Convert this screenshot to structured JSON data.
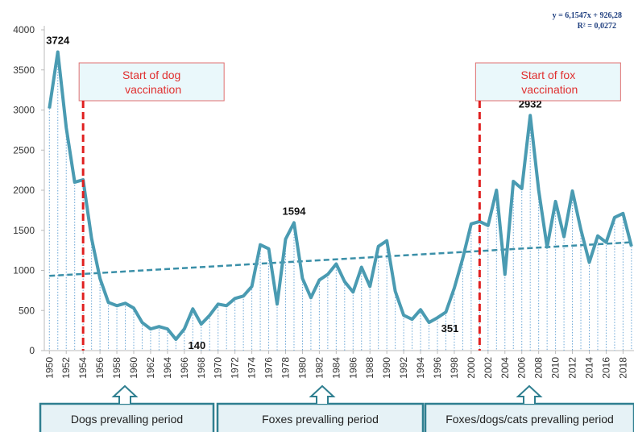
{
  "chart_data": {
    "type": "line",
    "x": [
      1950,
      1951,
      1952,
      1953,
      1954,
      1955,
      1956,
      1957,
      1958,
      1959,
      1960,
      1961,
      1962,
      1963,
      1964,
      1965,
      1966,
      1967,
      1968,
      1969,
      1970,
      1971,
      1972,
      1973,
      1974,
      1975,
      1976,
      1977,
      1978,
      1979,
      1980,
      1981,
      1982,
      1983,
      1984,
      1985,
      1986,
      1987,
      1988,
      1989,
      1990,
      1991,
      1992,
      1993,
      1994,
      1995,
      1996,
      1997,
      1998,
      1999,
      2000,
      2001,
      2002,
      2003,
      2004,
      2005,
      2006,
      2007,
      2008,
      2009,
      2010,
      2011,
      2012,
      2013,
      2014,
      2015,
      2016,
      2017,
      2018,
      2019
    ],
    "series": [
      {
        "name": null,
        "color": "#4a9bb2",
        "values": [
          3020,
          3724,
          2780,
          2100,
          2130,
          1400,
          900,
          600,
          560,
          590,
          530,
          350,
          270,
          300,
          270,
          140,
          270,
          520,
          330,
          440,
          580,
          560,
          650,
          680,
          800,
          1320,
          1270,
          580,
          1390,
          1594,
          900,
          660,
          880,
          950,
          1080,
          860,
          730,
          1040,
          800,
          1300,
          1370,
          740,
          440,
          390,
          510,
          351,
          410,
          480,
          780,
          1150,
          1580,
          1610,
          1560,
          2000,
          950,
          2110,
          2020,
          2932,
          2000,
          1290,
          1860,
          1420,
          1990,
          1510,
          1100,
          1430,
          1350,
          1660,
          1710,
          1300
        ],
        "value_labels": [
          null,
          "3724",
          null,
          null,
          null,
          null,
          null,
          null,
          null,
          null,
          null,
          null,
          null,
          null,
          null,
          "140",
          null,
          null,
          null,
          null,
          null,
          null,
          null,
          null,
          null,
          null,
          null,
          null,
          null,
          "1594",
          null,
          null,
          null,
          null,
          null,
          null,
          null,
          null,
          null,
          null,
          null,
          null,
          null,
          null,
          null,
          "351",
          null,
          null,
          null,
          null,
          null,
          null,
          null,
          null,
          null,
          null,
          null,
          "2932",
          null,
          null,
          null,
          null,
          null,
          null,
          null,
          null,
          null,
          null,
          null,
          null
        ]
      }
    ],
    "xlim": [
      1949.4,
      2019.3
    ],
    "xticks": [
      1950,
      1952,
      1954,
      1956,
      1958,
      1960,
      1962,
      1964,
      1966,
      1968,
      1970,
      1972,
      1974,
      1976,
      1978,
      1980,
      1982,
      1984,
      1986,
      1988,
      1990,
      1992,
      1994,
      1996,
      1998,
      2000,
      2002,
      2004,
      2006,
      2008,
      2010,
      2012,
      2014,
      2016,
      2018
    ],
    "ylim": [
      0,
      4000
    ],
    "yticks": [
      0,
      500,
      1000,
      1500,
      2000,
      2500,
      3000,
      3500,
      4000
    ],
    "trendline": {
      "equation": "y = 6,1547x + 926,28",
      "r_squared": "R² = 0,0272",
      "x": [
        1950,
        2019
      ],
      "values": [
        932,
        1351
      ],
      "color": "#3a8fa8"
    },
    "vaccination_marks": [
      {
        "x": 1954,
        "label": "Start of dog vaccination"
      },
      {
        "x": 2001,
        "label": "Start of fox vaccination"
      }
    ],
    "periods": [
      "Dogs prevalling period",
      "Foxes prevalling period",
      "Foxes/dogs/cats prevalling period"
    ]
  }
}
